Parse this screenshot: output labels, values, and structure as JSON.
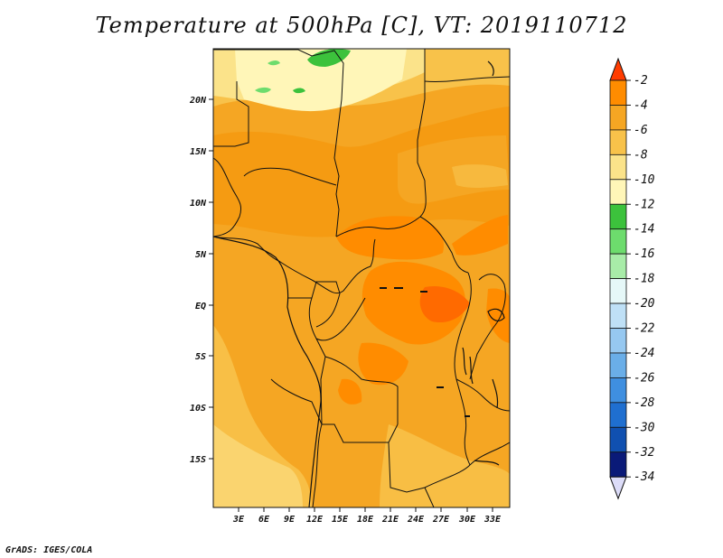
{
  "title": "Temperature at 500hPa [C], VT: 2019110712",
  "footer": "GrADS: IGES/COLA",
  "map": {
    "lon_ticks": [
      "3E",
      "6E",
      "9E",
      "12E",
      "15E",
      "18E",
      "21E",
      "24E",
      "27E",
      "30E",
      "33E"
    ],
    "lat_ticks": [
      "20N",
      "15N",
      "10N",
      "5N",
      "EQ",
      "5S",
      "10S",
      "15S"
    ]
  },
  "colorbar": {
    "labels": [
      "-2",
      "-4",
      "-6",
      "-8",
      "-10",
      "-12",
      "-14",
      "-16",
      "-18",
      "-20",
      "-22",
      "-24",
      "-26",
      "-28",
      "-30",
      "-32",
      "-34"
    ],
    "colors": [
      "#ff5a00",
      "#ff8c00",
      "#f5a623",
      "#f8c24a",
      "#fbe38a",
      "#fff6b8",
      "#3cc23c",
      "#6ddc6d",
      "#a8eca8",
      "#e6f8f8",
      "#bfe0f6",
      "#96c8f0",
      "#6aaee8",
      "#3f8fe0",
      "#1f6fd0",
      "#1050b0",
      "#0a1a78"
    ],
    "bottom_arrow_color": "#dcdcf8",
    "top_arrow_color": "#ff3c00"
  }
}
